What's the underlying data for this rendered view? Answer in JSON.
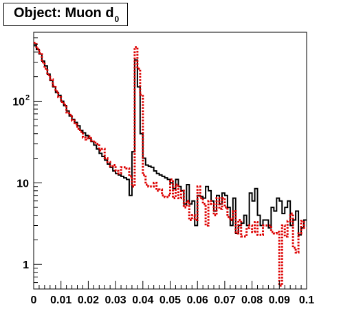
{
  "title": {
    "main": "Object: Muon d",
    "subscript": "0"
  },
  "chart_data": {
    "type": "histogram-step",
    "title": "Object: Muon d0",
    "xlabel": "",
    "ylabel": "",
    "xlim": [
      0,
      0.1
    ],
    "ylim": [
      0.5,
      700
    ],
    "yscale": "log",
    "grid": false,
    "legend": "none",
    "x_tick_labels": [
      "0",
      "0.01",
      "0.02",
      "0.03",
      "0.04",
      "0.05",
      "0.06",
      "0.07",
      "0.08",
      "0.09",
      "0.1"
    ],
    "y_tick_labels": [
      {
        "value": 1,
        "label": "1"
      },
      {
        "value": 10,
        "label": "10"
      },
      {
        "value": 100,
        "label": "10",
        "exponent": "2"
      }
    ],
    "bin_width": 0.001,
    "series": [
      {
        "color": "#000000",
        "style": "solid",
        "values": [
          480,
          430,
          380,
          310,
          270,
          215,
          180,
          150,
          128,
          118,
          100,
          88,
          76,
          66,
          60,
          55,
          50,
          44,
          41,
          38,
          35,
          32,
          29,
          26,
          23,
          21,
          19,
          17,
          15.5,
          14,
          13,
          12.5,
          12,
          11.5,
          11,
          7,
          24,
          320,
          150,
          40,
          20,
          16.5,
          16,
          15.5,
          14,
          13,
          12.5,
          12,
          11.5,
          11,
          10,
          8.5,
          11,
          9,
          8,
          5.5,
          9.5,
          5.5,
          6,
          3,
          7,
          6.8,
          6.5,
          9,
          8,
          6,
          4.5,
          7,
          5.5,
          7.5,
          7,
          5,
          3,
          6.5,
          2.4,
          3,
          3.2,
          4,
          3,
          7.5,
          6,
          8.5,
          4,
          3,
          3.5,
          3.5,
          2.8,
          5,
          4.5,
          6.5,
          6,
          4.2,
          5,
          6,
          3,
          3.5,
          4.5,
          2.3,
          2.8,
          3.5
        ]
      },
      {
        "color": "#dd0000",
        "style": "dotted",
        "values": [
          520,
          440,
          390,
          300,
          250,
          210,
          185,
          155,
          132,
          112,
          98,
          90,
          73,
          68,
          58,
          52,
          46,
          42,
          36,
          34,
          37,
          33,
          31,
          30,
          25,
          26,
          20,
          18,
          16,
          16.5,
          14,
          13,
          15.5,
          15.5,
          15,
          12,
          9,
          460,
          250,
          120,
          12.5,
          9.5,
          9,
          9,
          10,
          8,
          8.3,
          7,
          6.7,
          7,
          11,
          6.5,
          9.5,
          6.5,
          8,
          5,
          6,
          3.5,
          4,
          3.5,
          9,
          6.5,
          5.5,
          3,
          6,
          5.5,
          4,
          6.5,
          4.8,
          6.5,
          5,
          3.8,
          3.5,
          4.5,
          2.4,
          3.5,
          2.2,
          2.2,
          2.8,
          3,
          2.5,
          3.3,
          2.3,
          2.3,
          3,
          3,
          3,
          2.5,
          2.4,
          2.5,
          0.55,
          3,
          2.2,
          3.4,
          4.2,
          1.6,
          1.4,
          2.4,
          3.4,
          2.8
        ]
      }
    ]
  }
}
